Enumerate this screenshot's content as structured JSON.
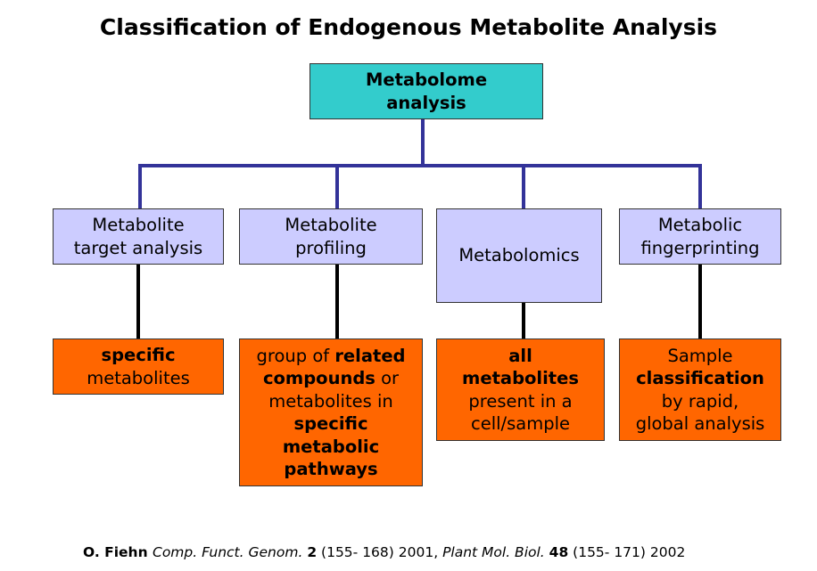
{
  "title": "Classification of Endogenous Metabolite Analysis",
  "root": {
    "lines": [
      [
        {
          "text": "Metabolome",
          "style": "bold"
        }
      ],
      [
        {
          "text": "analysis",
          "style": "bold"
        }
      ]
    ]
  },
  "branches": [
    {
      "label": [
        [
          {
            "text": "Metabolite",
            "style": "normal"
          }
        ],
        [
          {
            "text": "target analysis",
            "style": "normal"
          }
        ]
      ],
      "description": [
        [
          {
            "text": "specific",
            "style": "bold"
          }
        ],
        [
          {
            "text": "metabolites",
            "style": "normal"
          }
        ]
      ]
    },
    {
      "label": [
        [
          {
            "text": "Metabolite",
            "style": "normal"
          }
        ],
        [
          {
            "text": "profiling",
            "style": "normal"
          }
        ]
      ],
      "description": [
        [
          {
            "text": "group of ",
            "style": "normal"
          },
          {
            "text": "related",
            "style": "bold"
          }
        ],
        [
          {
            "text": "compounds",
            "style": "bold"
          },
          {
            "text": " or",
            "style": "normal"
          }
        ],
        [
          {
            "text": "metabolites in",
            "style": "normal"
          }
        ],
        [
          {
            "text": "specific",
            "style": "bold"
          }
        ],
        [
          {
            "text": "metabolic",
            "style": "bold"
          }
        ],
        [
          {
            "text": "pathways",
            "style": "bold"
          }
        ]
      ]
    },
    {
      "label": [
        [
          {
            "text": "Metabolomics",
            "style": "normal"
          }
        ]
      ],
      "description": [
        [
          {
            "text": "all",
            "style": "bold"
          }
        ],
        [
          {
            "text": "metabolites",
            "style": "bold"
          }
        ],
        [
          {
            "text": "present in a",
            "style": "normal"
          }
        ],
        [
          {
            "text": "cell/sample",
            "style": "normal"
          }
        ]
      ]
    },
    {
      "label": [
        [
          {
            "text": "Metabolic",
            "style": "normal"
          }
        ],
        [
          {
            "text": "fingerprinting",
            "style": "normal"
          }
        ]
      ],
      "description": [
        [
          {
            "text": "Sample",
            "style": "normal"
          }
        ],
        [
          {
            "text": "classification",
            "style": "bold"
          }
        ],
        [
          {
            "text": "by rapid,",
            "style": "normal"
          }
        ],
        [
          {
            "text": "global analysis",
            "style": "normal"
          }
        ]
      ]
    }
  ],
  "citation": [
    {
      "text": "O. Fiehn ",
      "style": "bold"
    },
    {
      "text": "Comp. Funct. Genom.",
      "style": "italic"
    },
    {
      "text": " ",
      "style": "normal"
    },
    {
      "text": "2",
      "style": "bold"
    },
    {
      "text": " (155- 168) 2001, ",
      "style": "normal"
    },
    {
      "text": "Plant Mol. Biol.",
      "style": "italic"
    },
    {
      "text": " ",
      "style": "normal"
    },
    {
      "text": "48",
      "style": "bold"
    },
    {
      "text": " (155- 171) 2002",
      "style": "normal"
    }
  ]
}
